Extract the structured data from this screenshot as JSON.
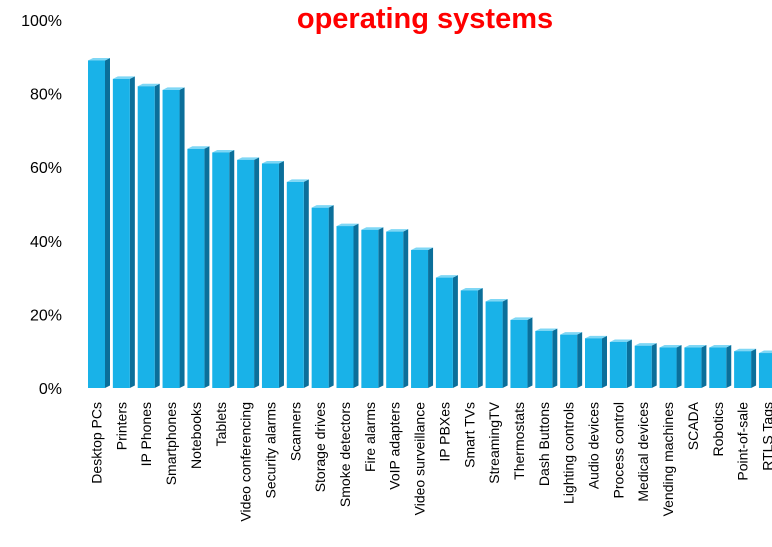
{
  "chart_data": {
    "type": "bar",
    "title": "operating systems",
    "xlabel": "",
    "ylabel": "",
    "ylim": [
      0,
      100
    ],
    "yticks": [
      "0%",
      "20%",
      "40%",
      "60%",
      "80%",
      "100%"
    ],
    "grid": false,
    "legend": "none",
    "bar_color": "#19b2e8",
    "bar_side_color": "#0b6f9a",
    "bar_top_color": "#7fd7f5",
    "title_color": "#ff0000",
    "categories": [
      "Desktop PCs",
      "Printers",
      "IP Phones",
      "Smartphones",
      "Notebooks",
      "Tablets",
      "Video conferencing",
      "Security alarms",
      "Scanners",
      "Storage drives",
      "Smoke detectors",
      "Fire alarms",
      "VoIP adapters",
      "Video surveillance",
      "IP PBXes",
      "Smart TVs",
      "StreamingTV",
      "Thermostats",
      "Dash Buttons",
      "Lighting controls",
      "Audio devices",
      "Process control",
      "Medical devices",
      "Vending machines",
      "SCADA",
      "Robotics",
      "Point-of-sale",
      "RTLS Tags"
    ],
    "values": [
      89,
      84,
      82,
      81,
      65,
      64,
      62,
      61,
      56,
      49,
      44,
      43,
      42.5,
      37.5,
      30,
      26.5,
      23.5,
      18.5,
      15.5,
      14.5,
      13.5,
      12.5,
      11.5,
      11,
      11,
      11,
      10,
      9.5
    ]
  }
}
